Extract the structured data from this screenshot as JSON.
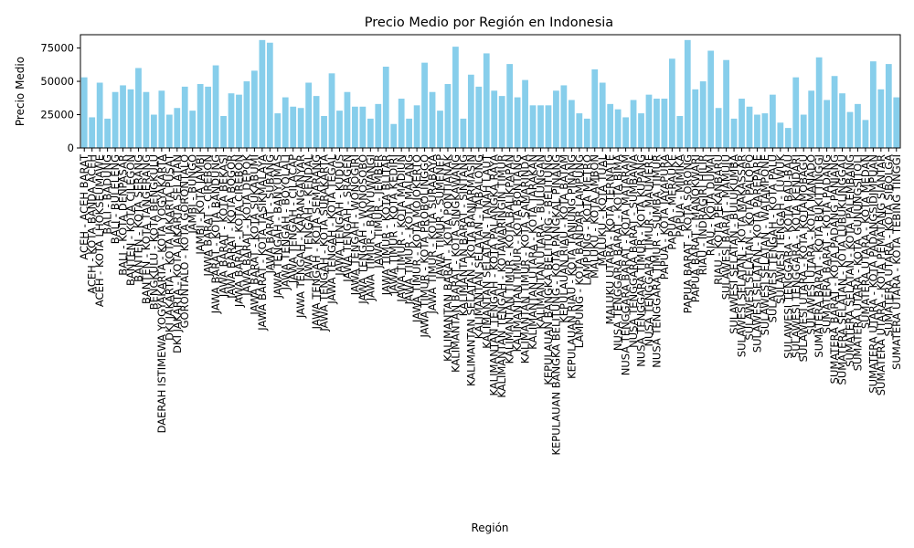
{
  "chart_data": {
    "type": "bar",
    "title": "Precio Medio por Región en Indonesia",
    "xlabel": "Región",
    "ylabel": "Precio Medio",
    "color": "#87ceeb",
    "ylim": [
      0,
      85000
    ],
    "yticks": [
      0,
      25000,
      50000,
      75000
    ],
    "grid": false,
    "categories": [
      "ACEH - ACEH BARAT",
      "ACEH - KOTA BANDA ACEH",
      "ACEH - KOTA LHOKSEUMAWE",
      "BALI - BADUNG",
      "BALI - BULELENG",
      "BALI - KOTA DENPASAR",
      "BANTEN - KOTA CILEGON",
      "BANTEN - KOTA SERANG",
      "BANTEN - KOTA TANGERANG",
      "BENGKULU - KOTA BENGKULU",
      "DAERAH ISTIMEWA YOGYAKARTA - KOTA YOGYAKARTA",
      "DKI JAKARTA - KOTA JAKARTA PUSAT",
      "DKI JAKARTA - KOTA JAKARTA SELATAN",
      "GORONTALO - KOTA GORONTALO",
      "JAMBI - BUNGO",
      "JAMBI - KOTA JAMBI",
      "JAWA BARAT - CIREBON",
      "JAWA BARAT - KOTA BANDUNG",
      "JAWA BARAT - KOTA BEKASI",
      "JAWA BARAT - KOTA BOGOR",
      "JAWA BARAT - KOTA CIREBON",
      "JAWA BARAT - KOTA DEPOK",
      "JAWA BARAT - KOTA SUKABUMI",
      "JAWA BARAT - KOTA TASIKMALAYA",
      "JAWA BARAT - SUBANG",
      "JAWA TENGAH - BANYUMAS",
      "JAWA TENGAH - BOYOLALI",
      "JAWA TENGAH - CILACAP",
      "JAWA TENGAH - KARANGANYAR",
      "JAWA TENGAH - KENDAL",
      "JAWA TENGAH - KOTA SEMARANG",
      "JAWA TENGAH - KOTA SURAKARTA",
      "JAWA TENGAH - KOTA TEGAL",
      "JAWA TENGAH - KUDUS",
      "JAWA TENGAH - SRAGEN",
      "JAWA TENGAH - WONOGIRI",
      "JAWA TENGAH - WONOSOBO",
      "JAWA TIMUR - BANYUWANGI",
      "JAWA TIMUR - JEMBER",
      "JAWA TIMUR - KOTA BLITAR",
      "JAWA TIMUR - KOTA KEDIRI",
      "JAWA TIMUR - KOTA MADIUN",
      "JAWA TIMUR - KOTA MALANG",
      "JAWA TIMUR - KOTA MOJOKERTO",
      "JAWA TIMUR - KOTA PROBOLINGGO",
      "JAWA TIMUR - KOTA SURABAYA",
      "JAWA TIMUR - SUMENEP",
      "KALIMANTAN BARAT - KOTA PONTIANAK",
      "KALIMANTAN BARAT - KOTA SINGKAWANG",
      "KALIMANTAN BARAT - SINTANG",
      "KALIMANTAN SELATAN - KOTA BANJARMASIN",
      "KALIMANTAN SELATAN - TABALONG",
      "KALIMANTAN SELATAN - TANAH LAUT",
      "KALIMANTAN TENGAH - KOTA PALANGKA RAYA",
      "KALIMANTAN TENGAH - KOTAWARINGIN TIMUR",
      "KALIMANTAN TIMUR - KOTA BALIKPAPAN",
      "KALIMANTAN TIMUR - KOTA BONTANG",
      "KALIMANTAN TIMUR - KOTA SAMARINDA",
      "KALIMANTAN UTARA - KOTA TARAKAN",
      "KALIMANTAN UTARA - BULUNGAN",
      "KEPULAUAN BANGKA BELITUNG - BELITUNG",
      "KEPULAUAN BANGKA BELITUNG - KOTA PANGKAL PINANG",
      "KEPULAUAN RIAU - KOTA BATAM",
      "KEPULAUAN RIAU - KOTA TANJUNG PINANG",
      "LAMPUNG - KOTA BANDAR LAMPUNG",
      "LAMPUNG - KOTA METRO",
      "MALUKU - KOTA AMBON",
      "MALUKU - KOTA TUAL",
      "MALUKU UTARA - KOTA TERNATE",
      "NUSA TENGGARA BARAT - KOTA BIMA",
      "NUSA TENGGARA BARAT - KOTA MATARAM",
      "NUSA TENGGARA BARAT - SUMBAWA",
      "NUSA TENGGARA TIMUR - KOTA KUPANG",
      "NUSA TENGGARA TIMUR - MAUMERE",
      "NUSA TENGGARA TIMUR - SUMBA TIMUR",
      "PAPUA - KOTA JAYAPURA",
      "PAPUA - MERAUKE",
      "PAPUA - MIMIKA",
      "PAPUA BARAT - KOTA SORONG",
      "PAPUA BARAT - MANOKWARI",
      "RIAU - INDRAGIRI HILIR",
      "RIAU - KOTA DUMAI",
      "RIAU - KOTA PEKANBARU",
      "SULAWESI BARAT - MAMUJU",
      "SULAWESI SELATAN - BULUKUMBA",
      "SULAWESI SELATAN - KOTA MAKASSAR",
      "SULAWESI SELATAN - KOTA PALOPO",
      "SULAWESI SELATAN - KOTA PAREPARE",
      "SULAWESI SELATAN - WATAMPONE",
      "SULAWESI TENGAH - KOTA PALU",
      "SULAWESI TENGAH - LUWUK",
      "SULAWESI TENGGARA - KOTA BAU-BAU",
      "SULAWESI TENGGARA - KOTA KENDARI",
      "SULAWESI UTARA - KOTA KOTAMOBAGU",
      "SULAWESI UTARA - KOTA MANADO",
      "SUMATERA BARAT - KOTA BUKITTINGGI",
      "SUMATERA BARAT - KOTA PADANG",
      "SUMATERA BARAT - KOTA PADANG PANJANG",
      "SUMATERA SELATAN - KOTA LUBUKLINGGAU",
      "SUMATERA SELATAN - KOTA PALEMBANG",
      "SUMATERA UTARA - KOTA GUNUNGSITOLI",
      "SUMATERA UTARA - KOTA MEDAN",
      "SUMATERA UTARA - KOTA PADANGSIDIMPUAN",
      "SUMATERA UTARA - KOTA PEMATANG SIANTAR",
      "SUMATERA UTARA - KOTA SIBOLGA",
      "SUMATERA UTARA - KOTA TEBING TINGGI"
    ],
    "values": [
      53000,
      23000,
      49000,
      22000,
      42000,
      47000,
      44000,
      60000,
      42000,
      25000,
      43000,
      25000,
      30000,
      46000,
      28000,
      48000,
      46000,
      62000,
      24000,
      41000,
      40000,
      50000,
      58000,
      81000,
      79000,
      26000,
      38000,
      31000,
      30000,
      49000,
      39000,
      24000,
      56000,
      28000,
      42000,
      31000,
      31000,
      22000,
      33000,
      61000,
      18000,
      37000,
      22000,
      32000,
      64000,
      42000,
      28000,
      48000,
      76000,
      22000,
      55000,
      46000,
      71000,
      43000,
      39000,
      63000,
      38000,
      51000,
      32000,
      32000,
      32000,
      43000,
      47000,
      36000,
      26000,
      22000,
      59000,
      49000,
      33000,
      29000,
      23000,
      36000,
      26000,
      40000,
      37000,
      37000,
      67000,
      24000,
      81000,
      44000,
      50000,
      73000,
      30000,
      66000,
      22000,
      37000,
      31000,
      25000,
      26000,
      40000,
      19000,
      15000,
      53000,
      25000,
      43000,
      68000,
      36000,
      54000,
      41000,
      27000,
      33000,
      21000,
      65000,
      44000,
      63000,
      38000
    ]
  }
}
